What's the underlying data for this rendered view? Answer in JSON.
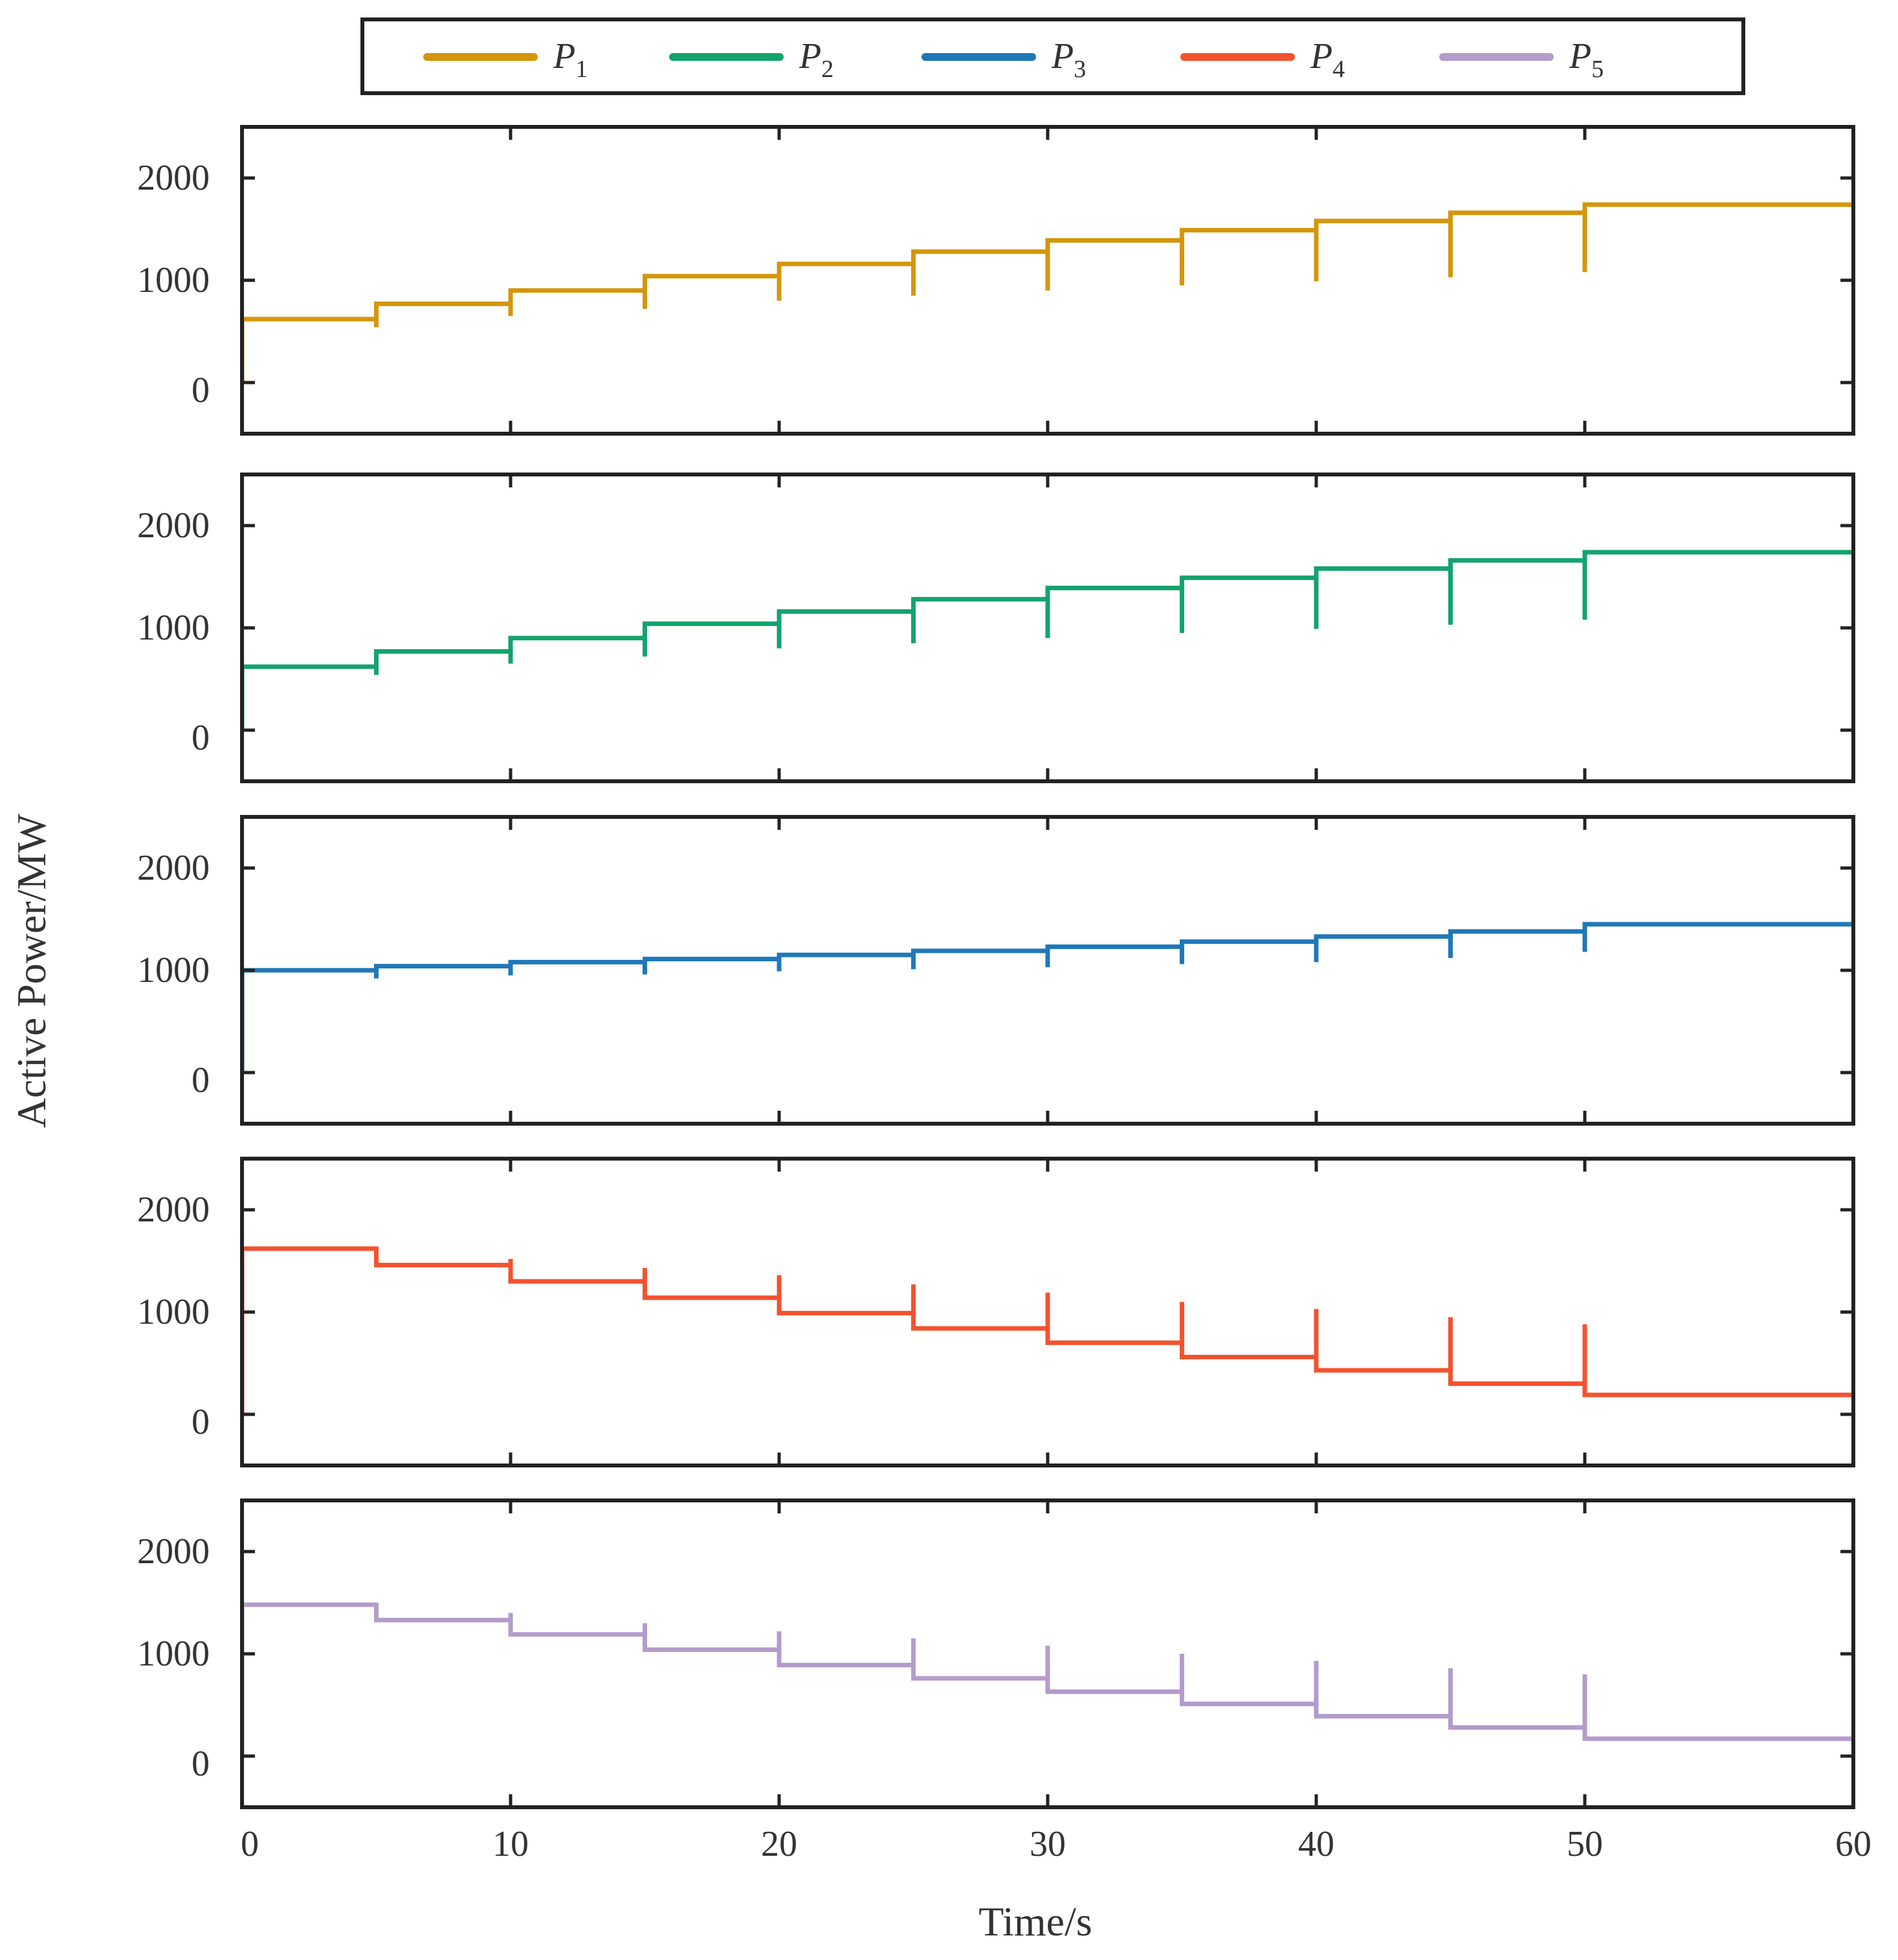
{
  "chart_data": {
    "type": "line",
    "xlabel": "Time/s",
    "ylabel": "Active Power/MW",
    "xlim": [
      0,
      60
    ],
    "ylim": [
      -500,
      2500
    ],
    "x_ticks": [
      0,
      10,
      20,
      30,
      40,
      50,
      60
    ],
    "x_tick_labels": [
      "0",
      "10",
      "20",
      "30",
      "40",
      "50",
      "60"
    ],
    "y_ticks": [
      0,
      1000,
      2000
    ],
    "y_tick_labels": [
      "0",
      "1000",
      "2000"
    ],
    "legend_position": "top",
    "grid": false,
    "step_times": [
      0,
      5,
      10,
      15,
      20,
      25,
      30,
      35,
      40,
      45,
      50
    ],
    "series": [
      {
        "name": "P",
        "subscript": "1",
        "color": "#D4960A",
        "values": [
          620,
          770,
          900,
          1040,
          1160,
          1280,
          1390,
          1490,
          1580,
          1660,
          1740
        ],
        "dip_values": [
          0,
          540,
          650,
          720,
          800,
          850,
          900,
          950,
          990,
          1030,
          1080
        ]
      },
      {
        "name": "P",
        "subscript": "2",
        "color": "#13A36D",
        "values": [
          620,
          770,
          900,
          1040,
          1160,
          1280,
          1390,
          1490,
          1580,
          1660,
          1740
        ],
        "dip_values": [
          0,
          540,
          650,
          720,
          800,
          850,
          900,
          950,
          990,
          1030,
          1080
        ]
      },
      {
        "name": "P",
        "subscript": "3",
        "color": "#1F78B8",
        "values": [
          1000,
          1040,
          1080,
          1110,
          1150,
          1190,
          1230,
          1280,
          1330,
          1380,
          1450
        ],
        "dip_values": [
          0,
          920,
          950,
          960,
          990,
          1010,
          1030,
          1060,
          1080,
          1120,
          1180
        ]
      },
      {
        "name": "P",
        "subscript": "4",
        "color": "#F4522F",
        "values": [
          1620,
          1460,
          1300,
          1140,
          990,
          840,
          700,
          560,
          430,
          300,
          190
        ],
        "dip_values": [
          0,
          1640,
          1520,
          1430,
          1360,
          1270,
          1190,
          1100,
          1030,
          950,
          880
        ]
      },
      {
        "name": "P",
        "subscript": "5",
        "color": "#B39CCB",
        "values": [
          1480,
          1330,
          1190,
          1040,
          890,
          760,
          630,
          510,
          390,
          280,
          170
        ],
        "dip_values": [
          0,
          1500,
          1400,
          1300,
          1220,
          1150,
          1080,
          1000,
          930,
          860,
          800
        ]
      }
    ]
  }
}
